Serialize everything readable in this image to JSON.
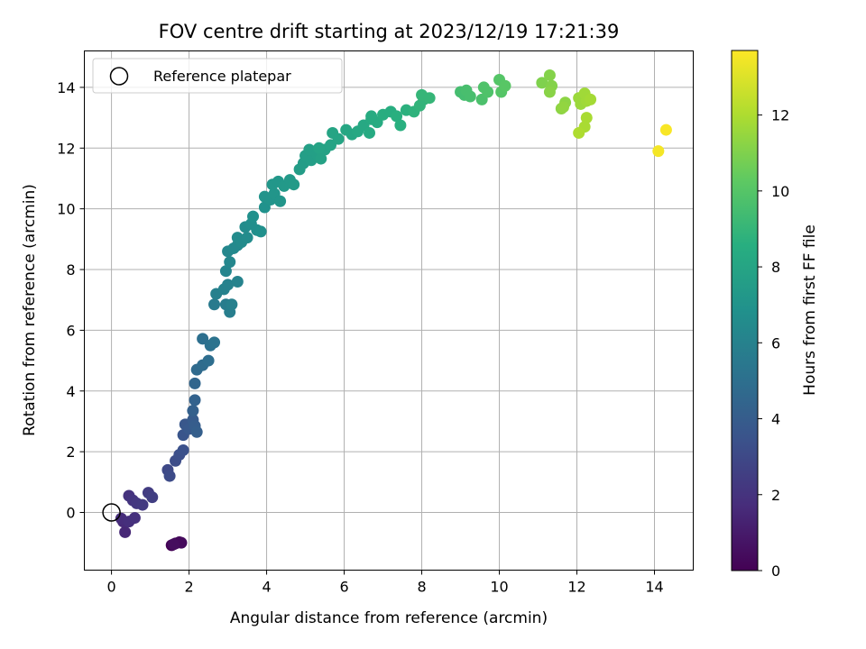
{
  "chart_data": {
    "type": "scatter",
    "title": "FOV centre drift starting at 2023/12/19 17:21:39",
    "xlabel": "Angular distance from reference (arcmin)",
    "ylabel": "Rotation from reference (arcmin)",
    "xlim": [
      -0.7,
      15
    ],
    "ylim": [
      -1.9,
      15.2
    ],
    "xticks": [
      0,
      2,
      4,
      6,
      8,
      10,
      12,
      14
    ],
    "yticks": [
      0,
      2,
      4,
      6,
      8,
      10,
      12,
      14
    ],
    "grid": true,
    "colormap": "viridis",
    "colorbar": {
      "label": "Hours from first FF file",
      "range": [
        0,
        13.7
      ],
      "ticks": [
        0,
        2,
        4,
        6,
        8,
        10,
        12
      ]
    },
    "legend": {
      "position": "top-left",
      "entries": [
        {
          "label": "Reference platepar",
          "marker": "hollow-circle"
        }
      ]
    },
    "reference_point": {
      "x": 0,
      "y": 0
    },
    "points": [
      {
        "x": 1.55,
        "y": -1.08,
        "c": 0.05
      },
      {
        "x": 1.65,
        "y": -1.02,
        "c": 0.15
      },
      {
        "x": 1.75,
        "y": -0.98,
        "c": 0.25
      },
      {
        "x": 1.8,
        "y": -1.0,
        "c": 0.35
      },
      {
        "x": 1.6,
        "y": -1.05,
        "c": 0.45
      },
      {
        "x": 0.35,
        "y": -0.65,
        "c": 1.5
      },
      {
        "x": 0.3,
        "y": -0.3,
        "c": 1.6
      },
      {
        "x": 0.25,
        "y": -0.2,
        "c": 1.7
      },
      {
        "x": 0.45,
        "y": -0.3,
        "c": 1.8
      },
      {
        "x": 0.6,
        "y": -0.18,
        "c": 1.9
      },
      {
        "x": 0.45,
        "y": 0.55,
        "c": 2.0
      },
      {
        "x": 0.55,
        "y": 0.4,
        "c": 2.1
      },
      {
        "x": 0.65,
        "y": 0.3,
        "c": 2.2
      },
      {
        "x": 0.8,
        "y": 0.25,
        "c": 2.3
      },
      {
        "x": 0.95,
        "y": 0.65,
        "c": 2.4
      },
      {
        "x": 1.05,
        "y": 0.5,
        "c": 2.5
      },
      {
        "x": 1.45,
        "y": 1.4,
        "c": 3.0
      },
      {
        "x": 1.5,
        "y": 1.2,
        "c": 3.1
      },
      {
        "x": 1.65,
        "y": 1.7,
        "c": 3.2
      },
      {
        "x": 1.75,
        "y": 1.9,
        "c": 3.3
      },
      {
        "x": 1.85,
        "y": 2.05,
        "c": 3.4
      },
      {
        "x": 1.85,
        "y": 2.55,
        "c": 3.6
      },
      {
        "x": 1.9,
        "y": 2.9,
        "c": 3.7
      },
      {
        "x": 2.0,
        "y": 2.75,
        "c": 3.8
      },
      {
        "x": 2.1,
        "y": 3.05,
        "c": 3.9
      },
      {
        "x": 2.15,
        "y": 2.85,
        "c": 4.0
      },
      {
        "x": 2.2,
        "y": 2.65,
        "c": 4.1
      },
      {
        "x": 2.1,
        "y": 3.35,
        "c": 4.2
      },
      {
        "x": 2.15,
        "y": 3.7,
        "c": 4.3
      },
      {
        "x": 2.15,
        "y": 4.25,
        "c": 4.5
      },
      {
        "x": 2.2,
        "y": 4.7,
        "c": 4.7
      },
      {
        "x": 2.35,
        "y": 4.85,
        "c": 4.8
      },
      {
        "x": 2.5,
        "y": 5.0,
        "c": 4.9
      },
      {
        "x": 2.35,
        "y": 5.72,
        "c": 5.0
      },
      {
        "x": 2.55,
        "y": 5.5,
        "c": 5.1
      },
      {
        "x": 2.65,
        "y": 5.6,
        "c": 5.2
      },
      {
        "x": 2.65,
        "y": 6.85,
        "c": 5.6
      },
      {
        "x": 2.95,
        "y": 6.85,
        "c": 5.7
      },
      {
        "x": 3.05,
        "y": 6.6,
        "c": 5.8
      },
      {
        "x": 3.1,
        "y": 6.85,
        "c": 5.9
      },
      {
        "x": 2.7,
        "y": 7.2,
        "c": 5.9
      },
      {
        "x": 2.9,
        "y": 7.35,
        "c": 6.0
      },
      {
        "x": 3.0,
        "y": 7.5,
        "c": 6.0
      },
      {
        "x": 3.25,
        "y": 7.6,
        "c": 6.1
      },
      {
        "x": 2.95,
        "y": 7.95,
        "c": 6.2
      },
      {
        "x": 3.05,
        "y": 8.25,
        "c": 6.3
      },
      {
        "x": 3.0,
        "y": 8.6,
        "c": 6.3
      },
      {
        "x": 3.15,
        "y": 8.7,
        "c": 6.4
      },
      {
        "x": 3.25,
        "y": 8.8,
        "c": 6.4
      },
      {
        "x": 3.25,
        "y": 9.05,
        "c": 6.5
      },
      {
        "x": 3.35,
        "y": 8.9,
        "c": 6.5
      },
      {
        "x": 3.5,
        "y": 9.05,
        "c": 6.6
      },
      {
        "x": 3.45,
        "y": 9.4,
        "c": 6.6
      },
      {
        "x": 3.6,
        "y": 9.5,
        "c": 6.7
      },
      {
        "x": 3.75,
        "y": 9.3,
        "c": 6.7
      },
      {
        "x": 3.65,
        "y": 9.75,
        "c": 6.8
      },
      {
        "x": 3.85,
        "y": 9.25,
        "c": 6.8
      },
      {
        "x": 3.95,
        "y": 10.05,
        "c": 6.9
      },
      {
        "x": 3.95,
        "y": 10.4,
        "c": 7.0
      },
      {
        "x": 4.1,
        "y": 10.3,
        "c": 7.0
      },
      {
        "x": 4.2,
        "y": 10.5,
        "c": 7.1
      },
      {
        "x": 4.35,
        "y": 10.25,
        "c": 7.1
      },
      {
        "x": 4.15,
        "y": 10.8,
        "c": 7.2
      },
      {
        "x": 4.3,
        "y": 10.9,
        "c": 7.2
      },
      {
        "x": 4.45,
        "y": 10.75,
        "c": 7.3
      },
      {
        "x": 4.6,
        "y": 10.95,
        "c": 7.3
      },
      {
        "x": 4.7,
        "y": 10.8,
        "c": 7.4
      },
      {
        "x": 4.85,
        "y": 11.3,
        "c": 7.5
      },
      {
        "x": 4.95,
        "y": 11.5,
        "c": 7.5
      },
      {
        "x": 5.0,
        "y": 11.75,
        "c": 7.6
      },
      {
        "x": 5.15,
        "y": 11.6,
        "c": 7.6
      },
      {
        "x": 5.1,
        "y": 11.95,
        "c": 7.7
      },
      {
        "x": 5.3,
        "y": 11.8,
        "c": 7.7
      },
      {
        "x": 5.4,
        "y": 11.65,
        "c": 7.8
      },
      {
        "x": 5.5,
        "y": 11.95,
        "c": 7.8
      },
      {
        "x": 5.35,
        "y": 12.0,
        "c": 7.9
      },
      {
        "x": 5.65,
        "y": 12.1,
        "c": 7.9
      },
      {
        "x": 5.7,
        "y": 12.5,
        "c": 8.0
      },
      {
        "x": 5.85,
        "y": 12.3,
        "c": 8.0
      },
      {
        "x": 6.05,
        "y": 12.6,
        "c": 8.1
      },
      {
        "x": 6.2,
        "y": 12.45,
        "c": 8.1
      },
      {
        "x": 6.35,
        "y": 12.55,
        "c": 8.2
      },
      {
        "x": 6.5,
        "y": 12.75,
        "c": 8.2
      },
      {
        "x": 6.65,
        "y": 12.5,
        "c": 8.3
      },
      {
        "x": 6.7,
        "y": 12.95,
        "c": 8.3
      },
      {
        "x": 6.85,
        "y": 12.85,
        "c": 8.4
      },
      {
        "x": 6.7,
        "y": 13.05,
        "c": 8.4
      },
      {
        "x": 7.0,
        "y": 13.1,
        "c": 8.5
      },
      {
        "x": 7.2,
        "y": 13.2,
        "c": 8.5
      },
      {
        "x": 7.35,
        "y": 13.05,
        "c": 8.6
      },
      {
        "x": 7.45,
        "y": 12.75,
        "c": 8.6
      },
      {
        "x": 7.6,
        "y": 13.25,
        "c": 8.7
      },
      {
        "x": 7.8,
        "y": 13.2,
        "c": 8.8
      },
      {
        "x": 7.95,
        "y": 13.4,
        "c": 8.9
      },
      {
        "x": 8.05,
        "y": 13.6,
        "c": 8.9
      },
      {
        "x": 8.0,
        "y": 13.75,
        "c": 9.0
      },
      {
        "x": 8.2,
        "y": 13.65,
        "c": 9.0
      },
      {
        "x": 9.0,
        "y": 13.85,
        "c": 9.5
      },
      {
        "x": 9.1,
        "y": 13.75,
        "c": 9.5
      },
      {
        "x": 9.15,
        "y": 13.9,
        "c": 9.6
      },
      {
        "x": 9.25,
        "y": 13.7,
        "c": 9.6
      },
      {
        "x": 9.55,
        "y": 13.6,
        "c": 9.7
      },
      {
        "x": 9.6,
        "y": 14.0,
        "c": 9.8
      },
      {
        "x": 9.7,
        "y": 13.85,
        "c": 9.8
      },
      {
        "x": 10.0,
        "y": 14.25,
        "c": 10.0
      },
      {
        "x": 10.05,
        "y": 13.85,
        "c": 10.0
      },
      {
        "x": 10.15,
        "y": 14.05,
        "c": 10.1
      },
      {
        "x": 11.1,
        "y": 14.15,
        "c": 11.0
      },
      {
        "x": 11.3,
        "y": 14.4,
        "c": 11.1
      },
      {
        "x": 11.35,
        "y": 14.05,
        "c": 11.1
      },
      {
        "x": 11.3,
        "y": 13.85,
        "c": 11.2
      },
      {
        "x": 11.6,
        "y": 13.3,
        "c": 11.3
      },
      {
        "x": 11.7,
        "y": 13.5,
        "c": 11.3
      },
      {
        "x": 11.65,
        "y": 13.35,
        "c": 11.4
      },
      {
        "x": 12.05,
        "y": 13.65,
        "c": 11.6
      },
      {
        "x": 12.1,
        "y": 13.45,
        "c": 11.6
      },
      {
        "x": 12.2,
        "y": 13.8,
        "c": 11.7
      },
      {
        "x": 12.25,
        "y": 13.55,
        "c": 11.7
      },
      {
        "x": 12.35,
        "y": 13.6,
        "c": 11.8
      },
      {
        "x": 12.25,
        "y": 13.0,
        "c": 11.9
      },
      {
        "x": 12.2,
        "y": 12.7,
        "c": 11.9
      },
      {
        "x": 12.05,
        "y": 12.5,
        "c": 12.0
      },
      {
        "x": 14.1,
        "y": 11.9,
        "c": 13.5
      },
      {
        "x": 14.3,
        "y": 12.6,
        "c": 13.6
      }
    ]
  }
}
